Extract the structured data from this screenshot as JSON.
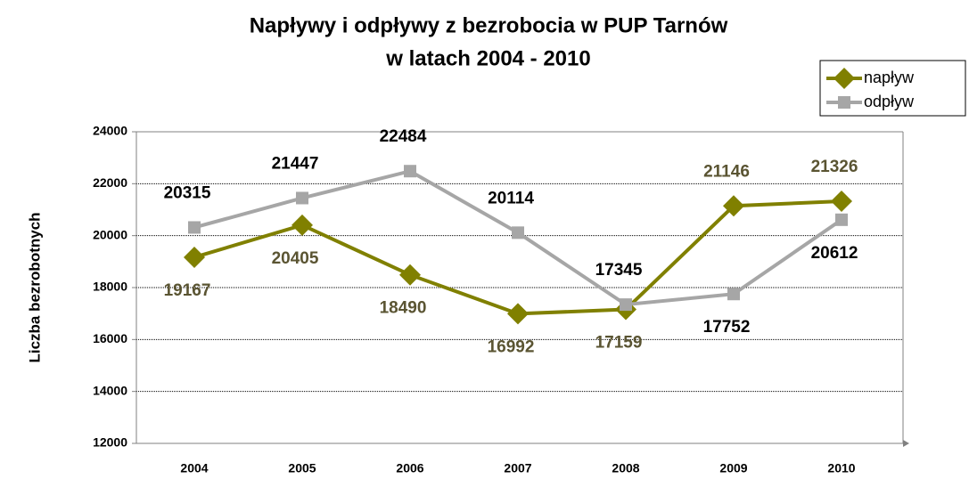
{
  "chart_data": {
    "type": "line",
    "title": "Napływy i odpływy z bezrobocia w PUP Tarnów",
    "subtitle": "w latach 2004 - 2010",
    "y_axis_label": "Liczba bezrobotnych",
    "categories": [
      "2004",
      "2005",
      "2006",
      "2007",
      "2008",
      "2009",
      "2010"
    ],
    "series": [
      {
        "name": "napływ",
        "color": "#808000",
        "label_color": "#5a5432",
        "marker": "diamond",
        "values": [
          19167,
          20405,
          18490,
          16992,
          17159,
          21146,
          21326
        ]
      },
      {
        "name": "odpływ",
        "color": "#a6a6a6",
        "label_color": "#000000",
        "marker": "square",
        "values": [
          20315,
          21447,
          22484,
          20114,
          17345,
          17752,
          20612
        ]
      }
    ],
    "ylim": [
      12000,
      24000
    ],
    "yticks": [
      12000,
      14000,
      16000,
      18000,
      20000,
      22000,
      24000
    ],
    "grid": true,
    "legend": "top-right"
  }
}
